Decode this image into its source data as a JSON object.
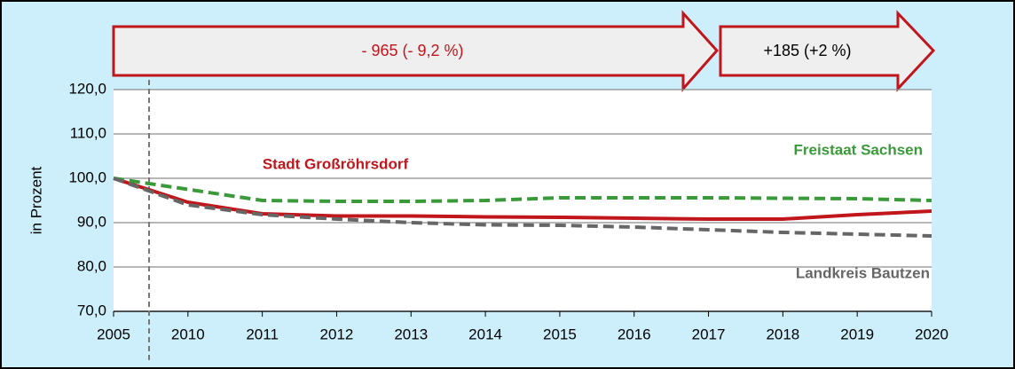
{
  "chart_data": {
    "type": "line",
    "y_label": "in Prozent",
    "annotations": [
      "- 965 (- 9,2 %)",
      "+185 (+2 %)"
    ],
    "categories": [
      "2005",
      "2010",
      "2011",
      "2012",
      "2013",
      "2014",
      "2015",
      "2016",
      "2017",
      "2018",
      "2019",
      "2020"
    ],
    "series": [
      {
        "name": "Stadt Großröhrsdorf",
        "color": "#c0161c",
        "style": "solid",
        "values": [
          100,
          94.6,
          92,
          91.5,
          91.5,
          91.3,
          91.2,
          91,
          90.8,
          90.8,
          91.8,
          92.6
        ]
      },
      {
        "name": "Freistaat Sachsen",
        "color": "#3a9a3a",
        "style": "dashed",
        "values": [
          100,
          97.5,
          95,
          94.8,
          94.8,
          95,
          95.6,
          95.6,
          95.6,
          95.5,
          95.4,
          95
        ]
      },
      {
        "name": "Landkreis Bautzen",
        "color": "#666666",
        "style": "dashed",
        "values": [
          100,
          94,
          91.8,
          90.8,
          90,
          89.5,
          89.4,
          89,
          88.4,
          87.8,
          87.4,
          87
        ]
      }
    ],
    "ylim": [
      70,
      120
    ],
    "yticks": [
      {
        "value": 70,
        "label": "70,0"
      },
      {
        "value": 80,
        "label": "80,0"
      },
      {
        "value": 90,
        "label": "90,0"
      },
      {
        "value": 100,
        "label": "100,0"
      },
      {
        "value": 110,
        "label": "110,0"
      },
      {
        "value": 120,
        "label": "120,0"
      }
    ],
    "grid": true
  }
}
